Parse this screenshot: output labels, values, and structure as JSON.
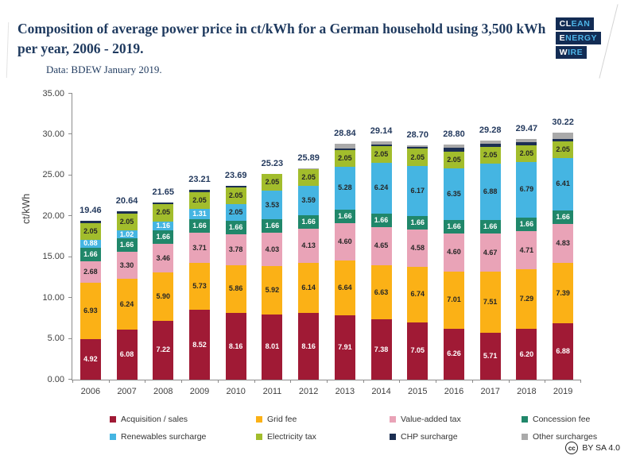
{
  "header": {
    "title": "Composition of average power price in ct/kWh for a German household using 3,500 kWh per year, 2006 - 2019.",
    "subtitle": "Data: BDEW January 2019.",
    "logo": {
      "lines": [
        {
          "strong": "CL",
          "rest": "EAN"
        },
        {
          "strong": "E",
          "rest": "NERGY"
        },
        {
          "strong": "W",
          "rest": "IRE"
        }
      ]
    }
  },
  "footer": {
    "cc_symbol": "cc",
    "license": "BY SA 4.0"
  },
  "chart_data": {
    "type": "bar",
    "stacked": true,
    "title": "Composition of average power price in ct/kWh for a German household using 3,500 kWh per year, 2006 - 2019.",
    "source": "Data: BDEW January 2019.",
    "xlabel": "",
    "ylabel": "ct/kWh",
    "ylim": [
      0,
      35
    ],
    "ytick_labels": [
      "0.00",
      "5.00",
      "10.00",
      "15.00",
      "20.00",
      "25.00",
      "30.00",
      "35.00"
    ],
    "grid": false,
    "legend_position": "bottom",
    "categories": [
      "2006",
      "2007",
      "2008",
      "2009",
      "2010",
      "2011",
      "2012",
      "2013",
      "2014",
      "2015",
      "2016",
      "2017",
      "2018",
      "2019"
    ],
    "totals": [
      "19.46",
      "20.64",
      "21.65",
      "23.21",
      "23.69",
      "25.23",
      "25.89",
      "28.84",
      "29.14",
      "28.70",
      "28.80",
      "29.28",
      "29.47",
      "30.22"
    ],
    "series": [
      {
        "key": "acquisition",
        "name": "Acquisition / sales",
        "color": "#a01a35",
        "label": "white",
        "show_labels": true,
        "values": [
          4.92,
          6.08,
          7.22,
          8.52,
          8.16,
          8.01,
          8.16,
          7.91,
          7.38,
          7.05,
          6.26,
          5.71,
          6.2,
          6.88
        ]
      },
      {
        "key": "grid_fee",
        "name": "Grid fee",
        "color": "#fbb116",
        "label": "dark",
        "show_labels": true,
        "values": [
          6.93,
          6.24,
          5.9,
          5.73,
          5.86,
          5.92,
          6.14,
          6.64,
          6.63,
          6.74,
          7.01,
          7.51,
          7.29,
          7.39
        ]
      },
      {
        "key": "vat",
        "name": "Value-added tax",
        "color": "#e9a3b7",
        "label": "dark",
        "show_labels": true,
        "values": [
          2.68,
          3.3,
          3.46,
          3.71,
          3.78,
          4.03,
          4.13,
          4.6,
          4.65,
          4.58,
          4.6,
          4.67,
          4.71,
          4.83
        ]
      },
      {
        "key": "concession",
        "name": "Concession fee",
        "color": "#20876a",
        "label": "white",
        "show_labels": true,
        "values": [
          1.66,
          1.66,
          1.66,
          1.66,
          1.66,
          1.66,
          1.66,
          1.66,
          1.66,
          1.66,
          1.66,
          1.66,
          1.66,
          1.66
        ]
      },
      {
        "key": "renewables",
        "name": "Renewables surcharge",
        "color": "#45b5e2",
        "label": "dark",
        "show_labels": true,
        "values": [
          0.88,
          1.02,
          1.16,
          1.31,
          2.05,
          3.53,
          3.59,
          5.28,
          6.24,
          6.17,
          6.35,
          6.88,
          6.79,
          6.41
        ]
      },
      {
        "key": "electricity_tax",
        "name": "Electricity tax",
        "color": "#a2bd2c",
        "label": "dark",
        "show_labels": true,
        "values": [
          2.05,
          2.05,
          2.05,
          2.05,
          2.05,
          2.05,
          2.05,
          2.05,
          2.05,
          2.05,
          2.05,
          2.05,
          2.05,
          2.05
        ]
      },
      {
        "key": "chp",
        "name": "CHP surcharge",
        "color": "#1c2f52",
        "label": "dark",
        "show_labels": false,
        "values": [
          0.31,
          0.29,
          0.19,
          0.23,
          0.13,
          0.03,
          0.01,
          0.13,
          0.18,
          0.25,
          0.44,
          0.44,
          0.35,
          0.28
        ]
      },
      {
        "key": "other",
        "name": "Other surcharges",
        "color": "#aaaaaa",
        "label": "dark",
        "show_labels": false,
        "values": [
          0.03,
          0.0,
          0.01,
          0.0,
          0.0,
          0.0,
          0.15,
          0.57,
          0.35,
          0.2,
          0.43,
          0.36,
          0.42,
          0.72
        ]
      }
    ]
  }
}
